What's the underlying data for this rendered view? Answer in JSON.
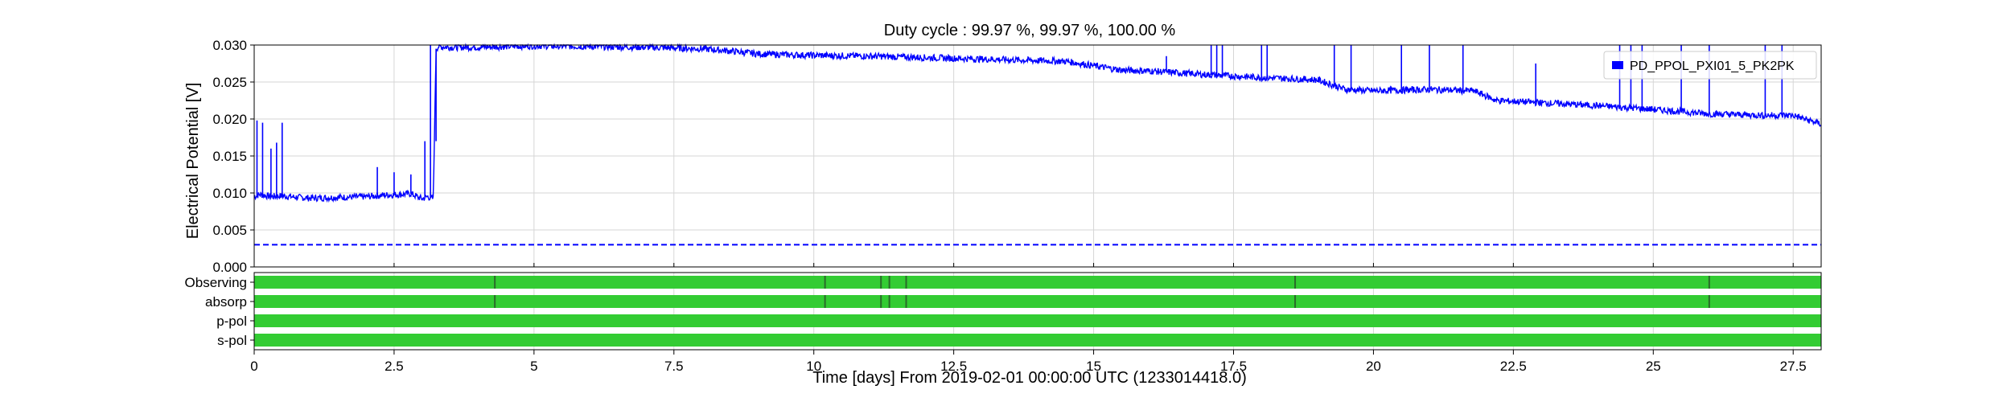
{
  "chart_data": {
    "type": "line",
    "title": "Duty cycle : 99.97 %, 99.97 %, 100.00 %",
    "ylabel": "Electrical Potential [V]",
    "xlabel": "Time [days] From 2019-02-01 00:00:00 UTC (1233014418.0)",
    "xlim": [
      0,
      28
    ],
    "ylim": [
      0,
      0.03
    ],
    "x_ticks": [
      0,
      2.5,
      5,
      7.5,
      10,
      12.5,
      15,
      17.5,
      20,
      22.5,
      25,
      27.5
    ],
    "x_tick_labels": [
      "0",
      "2.5",
      "5",
      "7.5",
      "10",
      "12.5",
      "15",
      "17.5",
      "20",
      "22.5",
      "25",
      "27.5"
    ],
    "y_ticks": [
      0,
      0.005,
      0.01,
      0.015,
      0.02,
      0.025,
      0.03
    ],
    "y_tick_labels": [
      "0.000",
      "0.005",
      "0.010",
      "0.015",
      "0.020",
      "0.025",
      "0.030"
    ],
    "grid": true,
    "legend": {
      "position": "top-right"
    },
    "series": [
      {
        "name": "PD_PPOL_PXI01_5_PK2PK",
        "color": "#0000ff",
        "x": [
          0,
          0.1,
          0.3,
          0.5,
          0.8,
          1.0,
          1.5,
          2.0,
          2.3,
          2.6,
          2.8,
          3.0,
          3.1,
          3.2,
          3.25,
          3.3,
          3.5,
          4.0,
          5.0,
          6.0,
          7.0,
          8.0,
          8.5,
          9.0,
          10.0,
          11.0,
          12.0,
          13.0,
          14.0,
          14.5,
          15.0,
          15.5,
          16.0,
          17.0,
          18.0,
          19.0,
          19.5,
          20.0,
          21.0,
          21.8,
          22.2,
          23.0,
          24.0,
          25.0,
          26.0,
          27.0,
          27.5,
          28.0
        ],
        "y": [
          0.0095,
          0.0098,
          0.0095,
          0.0096,
          0.0094,
          0.0093,
          0.0094,
          0.0095,
          0.0097,
          0.0098,
          0.0099,
          0.0092,
          0.0095,
          0.0092,
          0.0295,
          0.0298,
          0.0297,
          0.0297,
          0.0299,
          0.0298,
          0.0297,
          0.0295,
          0.0292,
          0.0288,
          0.0286,
          0.0285,
          0.0283,
          0.0281,
          0.0279,
          0.0278,
          0.0272,
          0.0266,
          0.0265,
          0.026,
          0.0256,
          0.0253,
          0.024,
          0.0238,
          0.024,
          0.0238,
          0.0225,
          0.0222,
          0.0218,
          0.0213,
          0.0207,
          0.0205,
          0.0205,
          0.0193
        ]
      }
    ],
    "reference_line": {
      "y": 0.003,
      "color": "#0000ff",
      "style": "dashed"
    },
    "state_bars": {
      "color": "#33cc33",
      "rows": [
        {
          "label": "Observing",
          "gaps": [
            4.3,
            10.2,
            11.2,
            11.35,
            11.65,
            18.6,
            26.0
          ]
        },
        {
          "label": "absorp",
          "gaps": [
            4.3,
            10.2,
            11.2,
            11.35,
            11.65,
            18.6,
            26.0
          ]
        },
        {
          "label": "p-pol",
          "gaps": []
        },
        {
          "label": "s-pol",
          "gaps": []
        }
      ]
    },
    "spikes": [
      {
        "x": 0.05,
        "top": 0.0198
      },
      {
        "x": 0.15,
        "top": 0.0195
      },
      {
        "x": 0.3,
        "top": 0.016
      },
      {
        "x": 0.4,
        "top": 0.0168
      },
      {
        "x": 0.5,
        "top": 0.0195
      },
      {
        "x": 2.2,
        "top": 0.0135
      },
      {
        "x": 2.5,
        "top": 0.0128
      },
      {
        "x": 2.8,
        "top": 0.0125
      },
      {
        "x": 3.05,
        "top": 0.017
      },
      {
        "x": 3.15,
        "top": 0.03
      },
      {
        "x": 3.25,
        "top": 0.017
      },
      {
        "x": 16.3,
        "top": 0.0285
      },
      {
        "x": 17.1,
        "top": 0.03
      },
      {
        "x": 17.2,
        "top": 0.03
      },
      {
        "x": 17.3,
        "top": 0.03
      },
      {
        "x": 18.0,
        "top": 0.03
      },
      {
        "x": 18.1,
        "top": 0.03
      },
      {
        "x": 19.3,
        "top": 0.03
      },
      {
        "x": 19.6,
        "top": 0.03
      },
      {
        "x": 20.5,
        "top": 0.03
      },
      {
        "x": 21.0,
        "top": 0.03
      },
      {
        "x": 21.6,
        "top": 0.03
      },
      {
        "x": 22.9,
        "top": 0.0275
      },
      {
        "x": 24.4,
        "top": 0.03
      },
      {
        "x": 24.6,
        "top": 0.03
      },
      {
        "x": 24.8,
        "top": 0.03
      },
      {
        "x": 25.5,
        "top": 0.03
      },
      {
        "x": 26.0,
        "top": 0.03
      },
      {
        "x": 27.0,
        "top": 0.03
      },
      {
        "x": 27.3,
        "top": 0.03
      }
    ]
  }
}
